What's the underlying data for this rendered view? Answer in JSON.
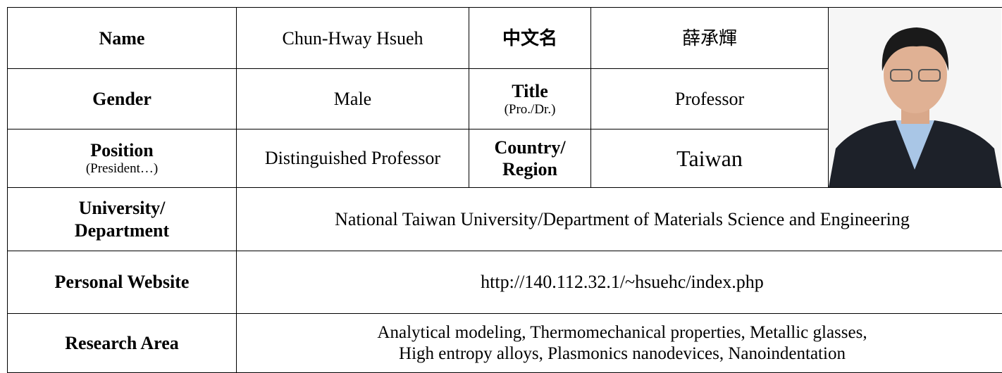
{
  "table": {
    "rows": [
      [
        [
          "Name"
        ],
        [
          "Chun-Hway Hsueh"
        ],
        [
          "中文名"
        ],
        [
          "薛承輝"
        ]
      ],
      [
        [
          "Gender"
        ],
        [
          "Male"
        ],
        [
          "Title",
          "(Pro./Dr.)"
        ],
        [
          "Professor"
        ]
      ],
      [
        [
          "Position",
          "(President…)"
        ],
        [
          "Distinguished Professor"
        ],
        [
          "Country/",
          "Region"
        ],
        [
          "Taiwan"
        ]
      ],
      [
        [
          "University/",
          "Department"
        ],
        [
          "National Taiwan University/Department of Materials Science and Engineering"
        ]
      ],
      [
        [
          "Personal Website"
        ],
        [
          "http://140.112.32.1/~hsuehc/index.php"
        ]
      ],
      [
        [
          "Research Area"
        ],
        [
          "Analytical modeling, Thermomechanical properties, Metallic glasses,",
          "High entropy alloys, Plasmonics nanodevices, Nanoindentation"
        ]
      ]
    ]
  }
}
